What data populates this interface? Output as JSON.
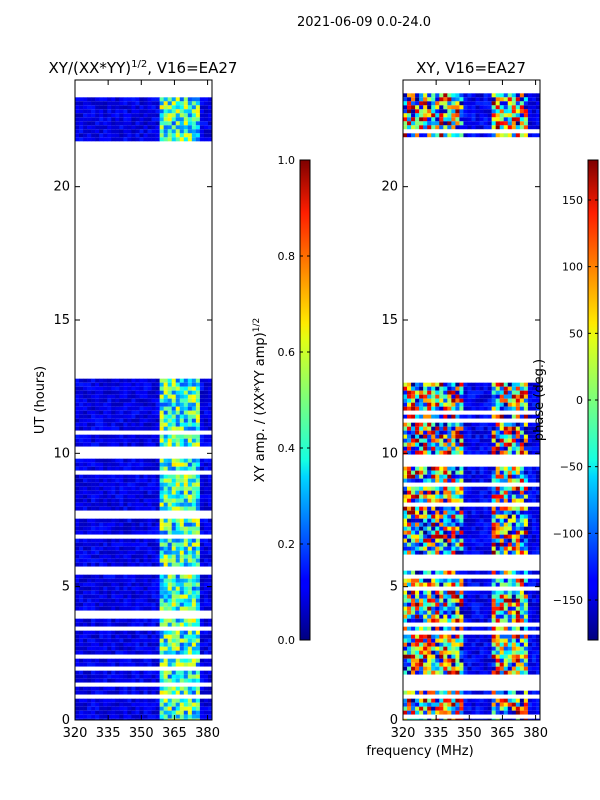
{
  "figure": {
    "suptitle": "2021-06-09 0.0-24.0",
    "xlabel": "frequency (MHz)"
  },
  "chart_data": [
    {
      "type": "heatmap",
      "title_main": "XY/(XX*YY)",
      "title_sup": "1/2",
      "title_rest": ", V16=EA27",
      "xlabel": "",
      "ylabel": "UT (hours)",
      "xlim": [
        320,
        382
      ],
      "ylim": [
        0,
        24
      ],
      "xticks": [
        "320",
        "335",
        "350",
        "365",
        "380"
      ],
      "xtick_values": [
        320,
        335,
        350,
        365,
        380
      ],
      "yticks": [
        "0",
        "5",
        "10",
        "15",
        "20"
      ],
      "ytick_values": [
        0,
        5,
        10,
        15,
        20
      ],
      "data_ut_ranges": [
        [
          0,
          12.8
        ],
        [
          21.7,
          23.5
        ]
      ],
      "bright_band_mhz": [
        359,
        377
      ],
      "colorbar": {
        "label_main": "XY amp. / (XX*YY amp)",
        "label_sup": "1/2",
        "range": [
          0.0,
          1.0
        ],
        "ticks": [
          "0.0",
          "0.2",
          "0.4",
          "0.6",
          "0.8",
          "1.0"
        ],
        "tick_values": [
          0.0,
          0.2,
          0.4,
          0.6,
          0.8,
          1.0
        ],
        "colormap": "jet"
      }
    },
    {
      "type": "heatmap",
      "title": "XY, V16=EA27",
      "xlabel": "frequency (MHz)",
      "ylabel": "",
      "xlim": [
        320,
        382
      ],
      "ylim": [
        0,
        24
      ],
      "xticks": [
        "320",
        "335",
        "350",
        "365",
        "380"
      ],
      "xtick_values": [
        320,
        335,
        350,
        365,
        380
      ],
      "yticks": [
        "0",
        "5",
        "10",
        "15",
        "20"
      ],
      "ytick_values": [
        0,
        5,
        10,
        15,
        20
      ],
      "data_ut_ranges": [
        [
          0,
          12.8
        ],
        [
          21.7,
          23.5
        ]
      ],
      "colorbar": {
        "label": "phase (deg.)",
        "range": [
          -180,
          180
        ],
        "ticks": [
          "150",
          "100",
          "50",
          "0",
          "−50",
          "−100",
          "−150"
        ],
        "tick_values": [
          150,
          100,
          50,
          0,
          -50,
          -100,
          -150
        ],
        "colormap": "jet"
      }
    }
  ]
}
